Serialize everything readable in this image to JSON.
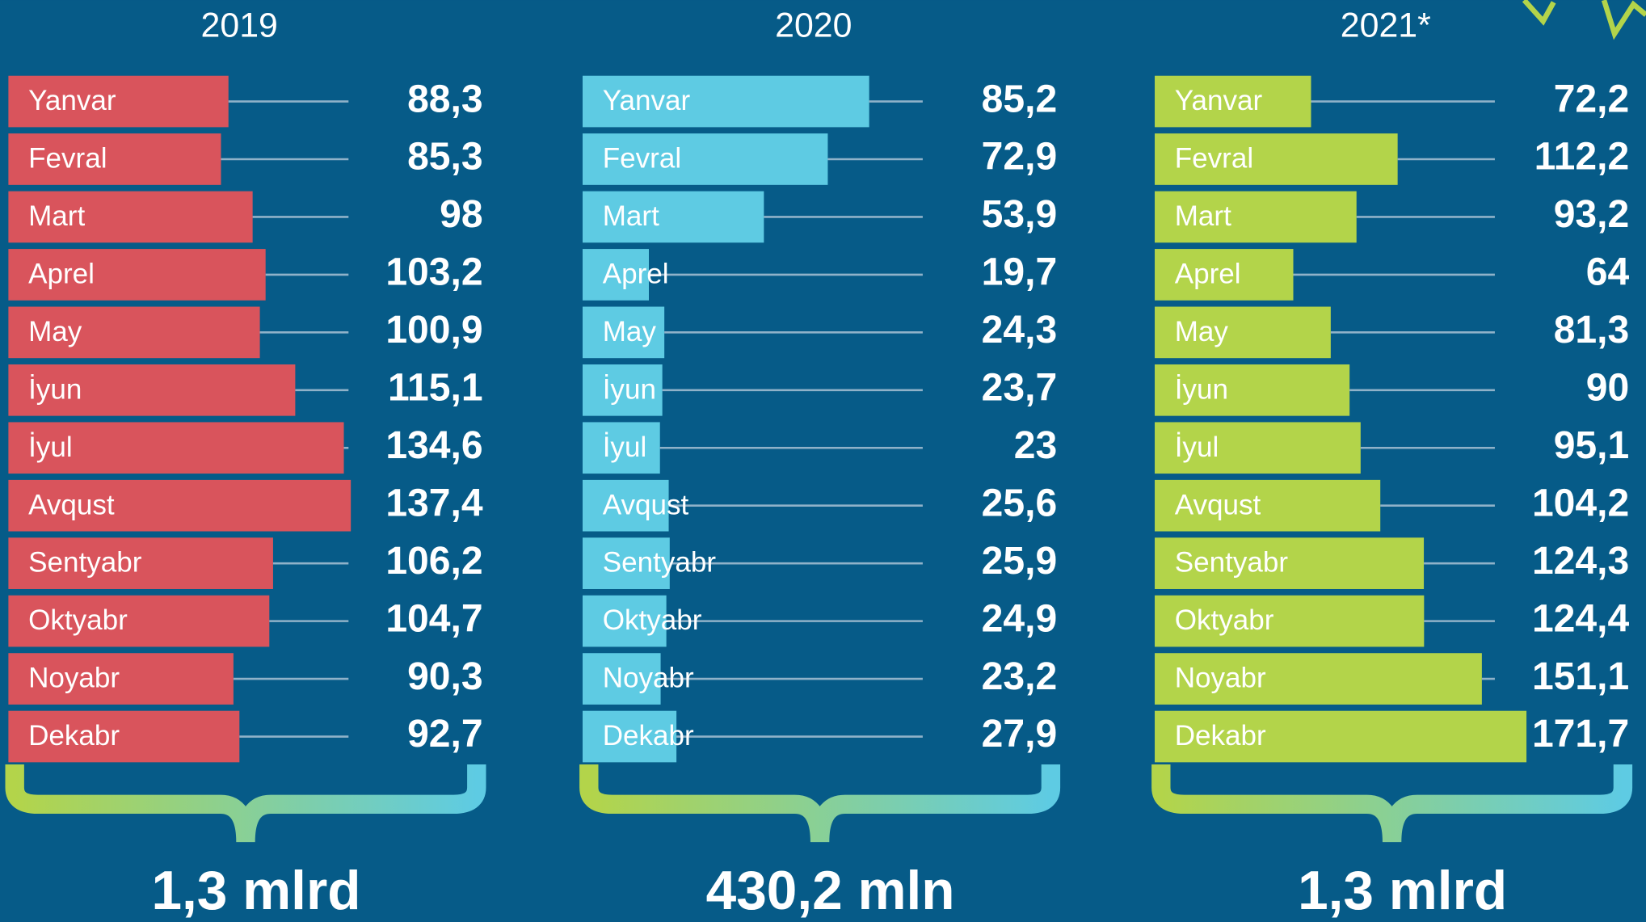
{
  "chart_data": [
    {
      "type": "bar",
      "orientation": "horizontal",
      "title": "2019",
      "categories": [
        "Yanvar",
        "Fevral",
        "Mart",
        "Aprel",
        "May",
        "İyun",
        "İyul",
        "Avqust",
        "Sentyabr",
        "Oktyabr",
        "Noyabr",
        "Dekabr"
      ],
      "values": [
        88.3,
        85.3,
        98,
        103.2,
        100.9,
        115.1,
        134.6,
        137.4,
        106.2,
        104.7,
        90.3,
        92.7
      ],
      "value_labels": [
        "88,3",
        "85,3",
        "98",
        "103,2",
        "100,9",
        "115,1",
        "134,6",
        "137,4",
        "106,2",
        "104,7",
        "90,3",
        "92,7"
      ],
      "color": "#d9545c",
      "xlim": [
        0,
        139
      ],
      "annotation": "1,3 mlrd"
    },
    {
      "type": "bar",
      "orientation": "horizontal",
      "title": "2020",
      "categories": [
        "Yanvar",
        "Fevral",
        "Mart",
        "Aprel",
        "May",
        "İyun",
        "İyul",
        "Avqust",
        "Sentyabr",
        "Oktyabr",
        "Noyabr",
        "Dekabr"
      ],
      "values": [
        85.2,
        72.9,
        53.9,
        19.7,
        24.3,
        23.7,
        23,
        25.6,
        25.9,
        24.9,
        23.2,
        27.9
      ],
      "value_labels": [
        "85,2",
        "72,9",
        "53,9",
        "19,7",
        "24,3",
        "23,7",
        "23",
        "25,6",
        "25,9",
        "24,9",
        "23,2",
        "27,9"
      ],
      "color": "#5ecbe3",
      "xlim": [
        0,
        103
      ],
      "annotation": "430,2 mln"
    },
    {
      "type": "bar",
      "orientation": "horizontal",
      "title": "2021*",
      "categories": [
        "Yanvar",
        "Fevral",
        "Mart",
        "Aprel",
        "May",
        "İyun",
        "İyul",
        "Avqust",
        "Sentyabr",
        "Oktyabr",
        "Noyabr",
        "Dekabr"
      ],
      "values": [
        72.2,
        112.2,
        93.2,
        64,
        81.3,
        90,
        95.1,
        104.2,
        124.3,
        124.4,
        151.1,
        171.7
      ],
      "value_labels": [
        "72,2",
        "112,2",
        "93,2",
        "64",
        "81,3",
        "90",
        "95,1",
        "104,2",
        "124,3",
        "124,4",
        "151,1",
        "171,7"
      ],
      "color": "#b3d44a",
      "xlim": [
        0,
        160
      ],
      "annotation": "1,3 mlrd"
    }
  ]
}
